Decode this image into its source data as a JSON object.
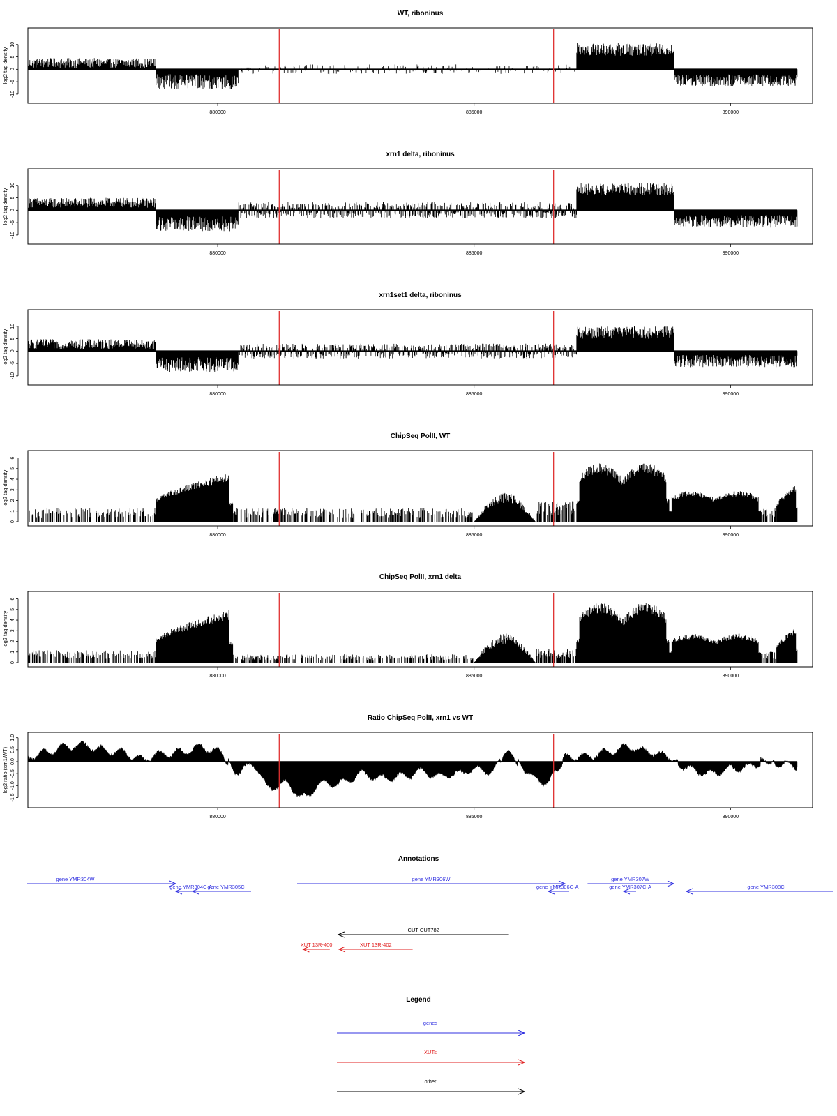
{
  "chart_data": [
    {
      "type": "bar",
      "title": "WT, riboninus",
      "ylabel": "log2 tag density",
      "xlim": [
        876300,
        891600
      ],
      "ylim": [
        -12,
        15
      ],
      "yticks": [
        -10,
        -5,
        0,
        5,
        10
      ],
      "xticks": [
        880000,
        885000,
        890000
      ],
      "marker_lines_x": [
        881200,
        886550
      ],
      "segments": [
        {
          "x": [
            876300,
            878800
          ],
          "sign": 1,
          "mag": 2.5,
          "spread": 2.0
        },
        {
          "x": [
            878800,
            880400
          ],
          "sign": -1,
          "mag": 5.0,
          "spread": 3.0
        },
        {
          "x": [
            880400,
            887000
          ],
          "sign": 0,
          "mag": 1.5,
          "spread": 1.5,
          "density": 0.25
        },
        {
          "x": [
            887000,
            888900
          ],
          "sign": 1,
          "mag": 8.0,
          "spread": 2.5
        },
        {
          "x": [
            888900,
            891300
          ],
          "sign": -1,
          "mag": 4.5,
          "spread": 2.5
        }
      ]
    },
    {
      "type": "bar",
      "title": "xrn1 delta, riboninus",
      "ylabel": "log2 tag density",
      "xlim": [
        876300,
        891600
      ],
      "ylim": [
        -12,
        15
      ],
      "yticks": [
        -10,
        -5,
        0,
        5,
        10
      ],
      "xticks": [
        880000,
        885000,
        890000
      ],
      "marker_lines_x": [
        881200,
        886550
      ],
      "segments": [
        {
          "x": [
            876300,
            878800
          ],
          "sign": 1,
          "mag": 3.0,
          "spread": 2.0
        },
        {
          "x": [
            878800,
            880400
          ],
          "sign": -1,
          "mag": 5.5,
          "spread": 3.0
        },
        {
          "x": [
            880400,
            887000
          ],
          "sign": 0,
          "mag": 2.5,
          "spread": 1.5,
          "density": 0.85
        },
        {
          "x": [
            887000,
            888900
          ],
          "sign": 1,
          "mag": 8.5,
          "spread": 2.5
        },
        {
          "x": [
            888900,
            891300
          ],
          "sign": -1,
          "mag": 4.5,
          "spread": 2.5
        }
      ]
    },
    {
      "type": "bar",
      "title": "xrn1set1 delta, riboninus",
      "ylabel": "log2 tag density",
      "xlim": [
        876300,
        891600
      ],
      "ylim": [
        -12,
        15
      ],
      "yticks": [
        -10,
        -5,
        0,
        5,
        10
      ],
      "xticks": [
        880000,
        885000,
        890000
      ],
      "marker_lines_x": [
        881200,
        886550
      ],
      "segments": [
        {
          "x": [
            876300,
            878800
          ],
          "sign": 1,
          "mag": 2.8,
          "spread": 2.0
        },
        {
          "x": [
            878800,
            880400
          ],
          "sign": -1,
          "mag": 5.5,
          "spread": 3.0
        },
        {
          "x": [
            880400,
            887000
          ],
          "sign": 0,
          "mag": 2.3,
          "spread": 1.5,
          "density": 0.8
        },
        {
          "x": [
            887000,
            888900
          ],
          "sign": 1,
          "mag": 7.5,
          "spread": 2.5
        },
        {
          "x": [
            888900,
            891300
          ],
          "sign": -1,
          "mag": 4.0,
          "spread": 2.5
        }
      ]
    },
    {
      "type": "bar",
      "title": "ChipSeq PolII, WT",
      "ylabel": "log2 tag density",
      "xlim": [
        876300,
        891600
      ],
      "ylim": [
        0,
        6.3
      ],
      "yticks": [
        0,
        1,
        2,
        3,
        4,
        5,
        6
      ],
      "xticks": [
        880000,
        885000,
        890000
      ],
      "marker_lines_x": [
        881200,
        886550
      ],
      "segments": [
        {
          "x": [
            876300,
            878800
          ],
          "shape": "noise",
          "mag": 1.0,
          "density": 0.45
        },
        {
          "x": [
            878800,
            880300
          ],
          "shape": "rise",
          "mag": 4.5
        },
        {
          "x": [
            880300,
            885000
          ],
          "shape": "noise",
          "mag": 1.0,
          "density": 0.5
        },
        {
          "x": [
            885000,
            886200
          ],
          "shape": "hump",
          "mag": 2.5
        },
        {
          "x": [
            886200,
            887000
          ],
          "shape": "noise",
          "mag": 1.5,
          "density": 0.7
        },
        {
          "x": [
            887000,
            888800
          ],
          "shape": "twin",
          "mag": 5.3
        },
        {
          "x": [
            888800,
            890600
          ],
          "shape": "twin",
          "mag": 2.8
        },
        {
          "x": [
            890600,
            890900
          ],
          "shape": "noise",
          "mag": 1.0,
          "density": 0.6
        },
        {
          "x": [
            890900,
            891300
          ],
          "shape": "rise",
          "mag": 3.4
        }
      ]
    },
    {
      "type": "bar",
      "title": "ChipSeq PolII, xrn1 delta",
      "ylabel": "log2 tag density",
      "xlim": [
        876300,
        891600
      ],
      "ylim": [
        0,
        6.3
      ],
      "yticks": [
        0,
        1,
        2,
        3,
        4,
        5,
        6
      ],
      "xticks": [
        880000,
        885000,
        890000
      ],
      "marker_lines_x": [
        881200,
        886550
      ],
      "segments": [
        {
          "x": [
            876300,
            878800
          ],
          "shape": "noise",
          "mag": 0.9,
          "density": 0.5
        },
        {
          "x": [
            878800,
            880300
          ],
          "shape": "rise",
          "mag": 4.8
        },
        {
          "x": [
            880300,
            885000
          ],
          "shape": "noise",
          "mag": 0.6,
          "density": 0.45
        },
        {
          "x": [
            885000,
            886200
          ],
          "shape": "hump",
          "mag": 2.5
        },
        {
          "x": [
            886200,
            887000
          ],
          "shape": "noise",
          "mag": 1.0,
          "density": 0.7
        },
        {
          "x": [
            887000,
            888800
          ],
          "shape": "twin",
          "mag": 5.4
        },
        {
          "x": [
            888800,
            890600
          ],
          "shape": "twin",
          "mag": 2.6
        },
        {
          "x": [
            890600,
            890900
          ],
          "shape": "noise",
          "mag": 0.8,
          "density": 0.6
        },
        {
          "x": [
            890900,
            891300
          ],
          "shape": "rise",
          "mag": 3.2
        }
      ]
    },
    {
      "type": "area",
      "title": "Ratio ChipSeq PolII, xrn1 vs WT",
      "ylabel": "log2 ratio (xrn1/WT)",
      "xlim": [
        876300,
        891600
      ],
      "ylim": [
        -1.75,
        1.05
      ],
      "yticks": [
        -1.5,
        -1.0,
        -0.5,
        0.0,
        0.5,
        1.0
      ],
      "xticks": [
        880000,
        885000,
        890000
      ],
      "marker_lines_x": [
        881200,
        886550
      ],
      "x": [
        876300,
        876700,
        877000,
        877400,
        877700,
        878100,
        878500,
        878900,
        879300,
        879700,
        880000,
        880400,
        880700,
        881000,
        881300,
        881700,
        882000,
        882400,
        882800,
        883200,
        883600,
        884000,
        884300,
        884700,
        885000,
        885300,
        885700,
        886000,
        886300,
        886600,
        886800,
        887200,
        887600,
        888000,
        888400,
        888800,
        889200,
        889600,
        890000,
        890400,
        890700,
        891000,
        891300
      ],
      "y": [
        0.2,
        0.4,
        0.6,
        0.7,
        0.5,
        0.4,
        0.1,
        0.3,
        0.4,
        0.6,
        0.4,
        -0.4,
        -0.1,
        -1.1,
        -0.9,
        -1.5,
        -0.9,
        -0.9,
        -0.5,
        -0.7,
        -0.6,
        -0.4,
        -0.6,
        -0.5,
        -0.3,
        -0.4,
        0.3,
        -0.3,
        -0.9,
        -0.5,
        0.2,
        0.2,
        0.4,
        0.6,
        0.4,
        0.2,
        -0.3,
        -0.5,
        -0.3,
        -0.2,
        0.1,
        -0.1,
        -0.2
      ]
    }
  ],
  "annotations": {
    "title": "Annotations",
    "items": [
      {
        "label": "gene YMR304W",
        "x0": 0.032,
        "x1": 0.21,
        "row": 0,
        "dir": "right",
        "color": "#3030e0",
        "lx": 0.09
      },
      {
        "label": "gene YMR304C-A",
        "x0": 0.21,
        "x1": 0.245,
        "row": 1,
        "dir": "left",
        "color": "#3030e0",
        "lx": 0.228
      },
      {
        "label": "gene YMR305C",
        "x0": 0.23,
        "x1": 0.3,
        "row": 1,
        "dir": "left",
        "color": "#3030e0",
        "lx": 0.27
      },
      {
        "label": "gene YMR306W",
        "x0": 0.355,
        "x1": 0.675,
        "row": 0,
        "dir": "right",
        "color": "#3030e0",
        "lx": 0.515
      },
      {
        "label": "gene YMR306C-A",
        "x0": 0.655,
        "x1": 0.68,
        "row": 1,
        "dir": "left",
        "color": "#3030e0",
        "lx": 0.666
      },
      {
        "label": "gene YMR307W",
        "x0": 0.702,
        "x1": 0.805,
        "row": 0,
        "dir": "right",
        "color": "#3030e0",
        "lx": 0.753
      },
      {
        "label": "gene YMR307C-A",
        "x0": 0.745,
        "x1": 0.76,
        "row": 1,
        "dir": "left",
        "color": "#3030e0",
        "lx": 0.753
      },
      {
        "label": "gene YMR308C",
        "x0": 0.82,
        "x1": 0.995,
        "row": 1,
        "dir": "left",
        "color": "#3030e0",
        "lx": 0.915
      },
      {
        "label": "CUT CUT782",
        "x0": 0.404,
        "x1": 0.608,
        "row": 2,
        "dir": "left",
        "color": "#000000",
        "lx": 0.506
      },
      {
        "label": "XUT 13R-400",
        "x0": 0.362,
        "x1": 0.394,
        "row": 3,
        "dir": "left",
        "color": "#e02020",
        "lx": 0.378
      },
      {
        "label": "XUT 13R-402",
        "x0": 0.405,
        "x1": 0.493,
        "row": 3,
        "dir": "left",
        "color": "#e02020",
        "lx": 0.449
      }
    ]
  },
  "legend": {
    "title": "Legend",
    "items": [
      {
        "label": "genes",
        "color": "#3030e0"
      },
      {
        "label": "XUTs",
        "color": "#e02020"
      },
      {
        "label": "other",
        "color": "#000000"
      }
    ]
  }
}
